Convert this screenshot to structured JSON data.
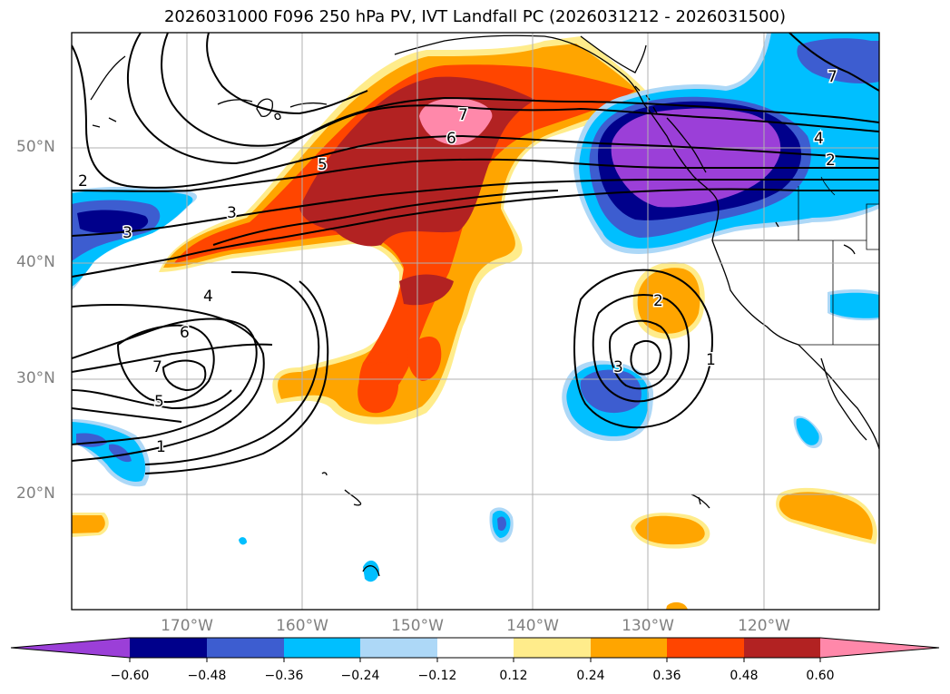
{
  "title": "2026031000 F096 250 hPa PV, IVT Landfall PC (2026031212 - 2026031500)",
  "map": {
    "projection": "cylindrical",
    "extent": {
      "lon_min": -180,
      "lon_max": -110,
      "lat_min": 10,
      "lat_max": 60
    },
    "lat_gridlines": [
      20,
      30,
      40,
      50
    ],
    "lon_gridlines": [
      -170,
      -160,
      -150,
      -140,
      -130,
      -120
    ],
    "lat_labels": [
      "50°N",
      "40°N",
      "30°N",
      "20°N"
    ],
    "lon_labels": [
      "170°W",
      "160°W",
      "150°W",
      "140°W",
      "130°W",
      "120°W"
    ],
    "contour_labels": [
      "7",
      "6",
      "5",
      "3",
      "2",
      "3",
      "4",
      "6",
      "7",
      "5",
      "1",
      "2",
      "3",
      "1",
      "7",
      "4",
      "2"
    ]
  },
  "colorbar": {
    "ticks": [
      "−0.60",
      "−0.48",
      "−0.36",
      "−0.24",
      "−0.12",
      "0.12",
      "0.24",
      "0.36",
      "0.48",
      "0.60"
    ],
    "colors": [
      "#9b3fd8",
      "#00008b",
      "#3d5dd0",
      "#00bfff",
      "#add8f7",
      "#ffffff",
      "#ffec8b",
      "#ffa500",
      "#ff4500",
      "#b22222",
      "#ff88aa"
    ]
  }
}
